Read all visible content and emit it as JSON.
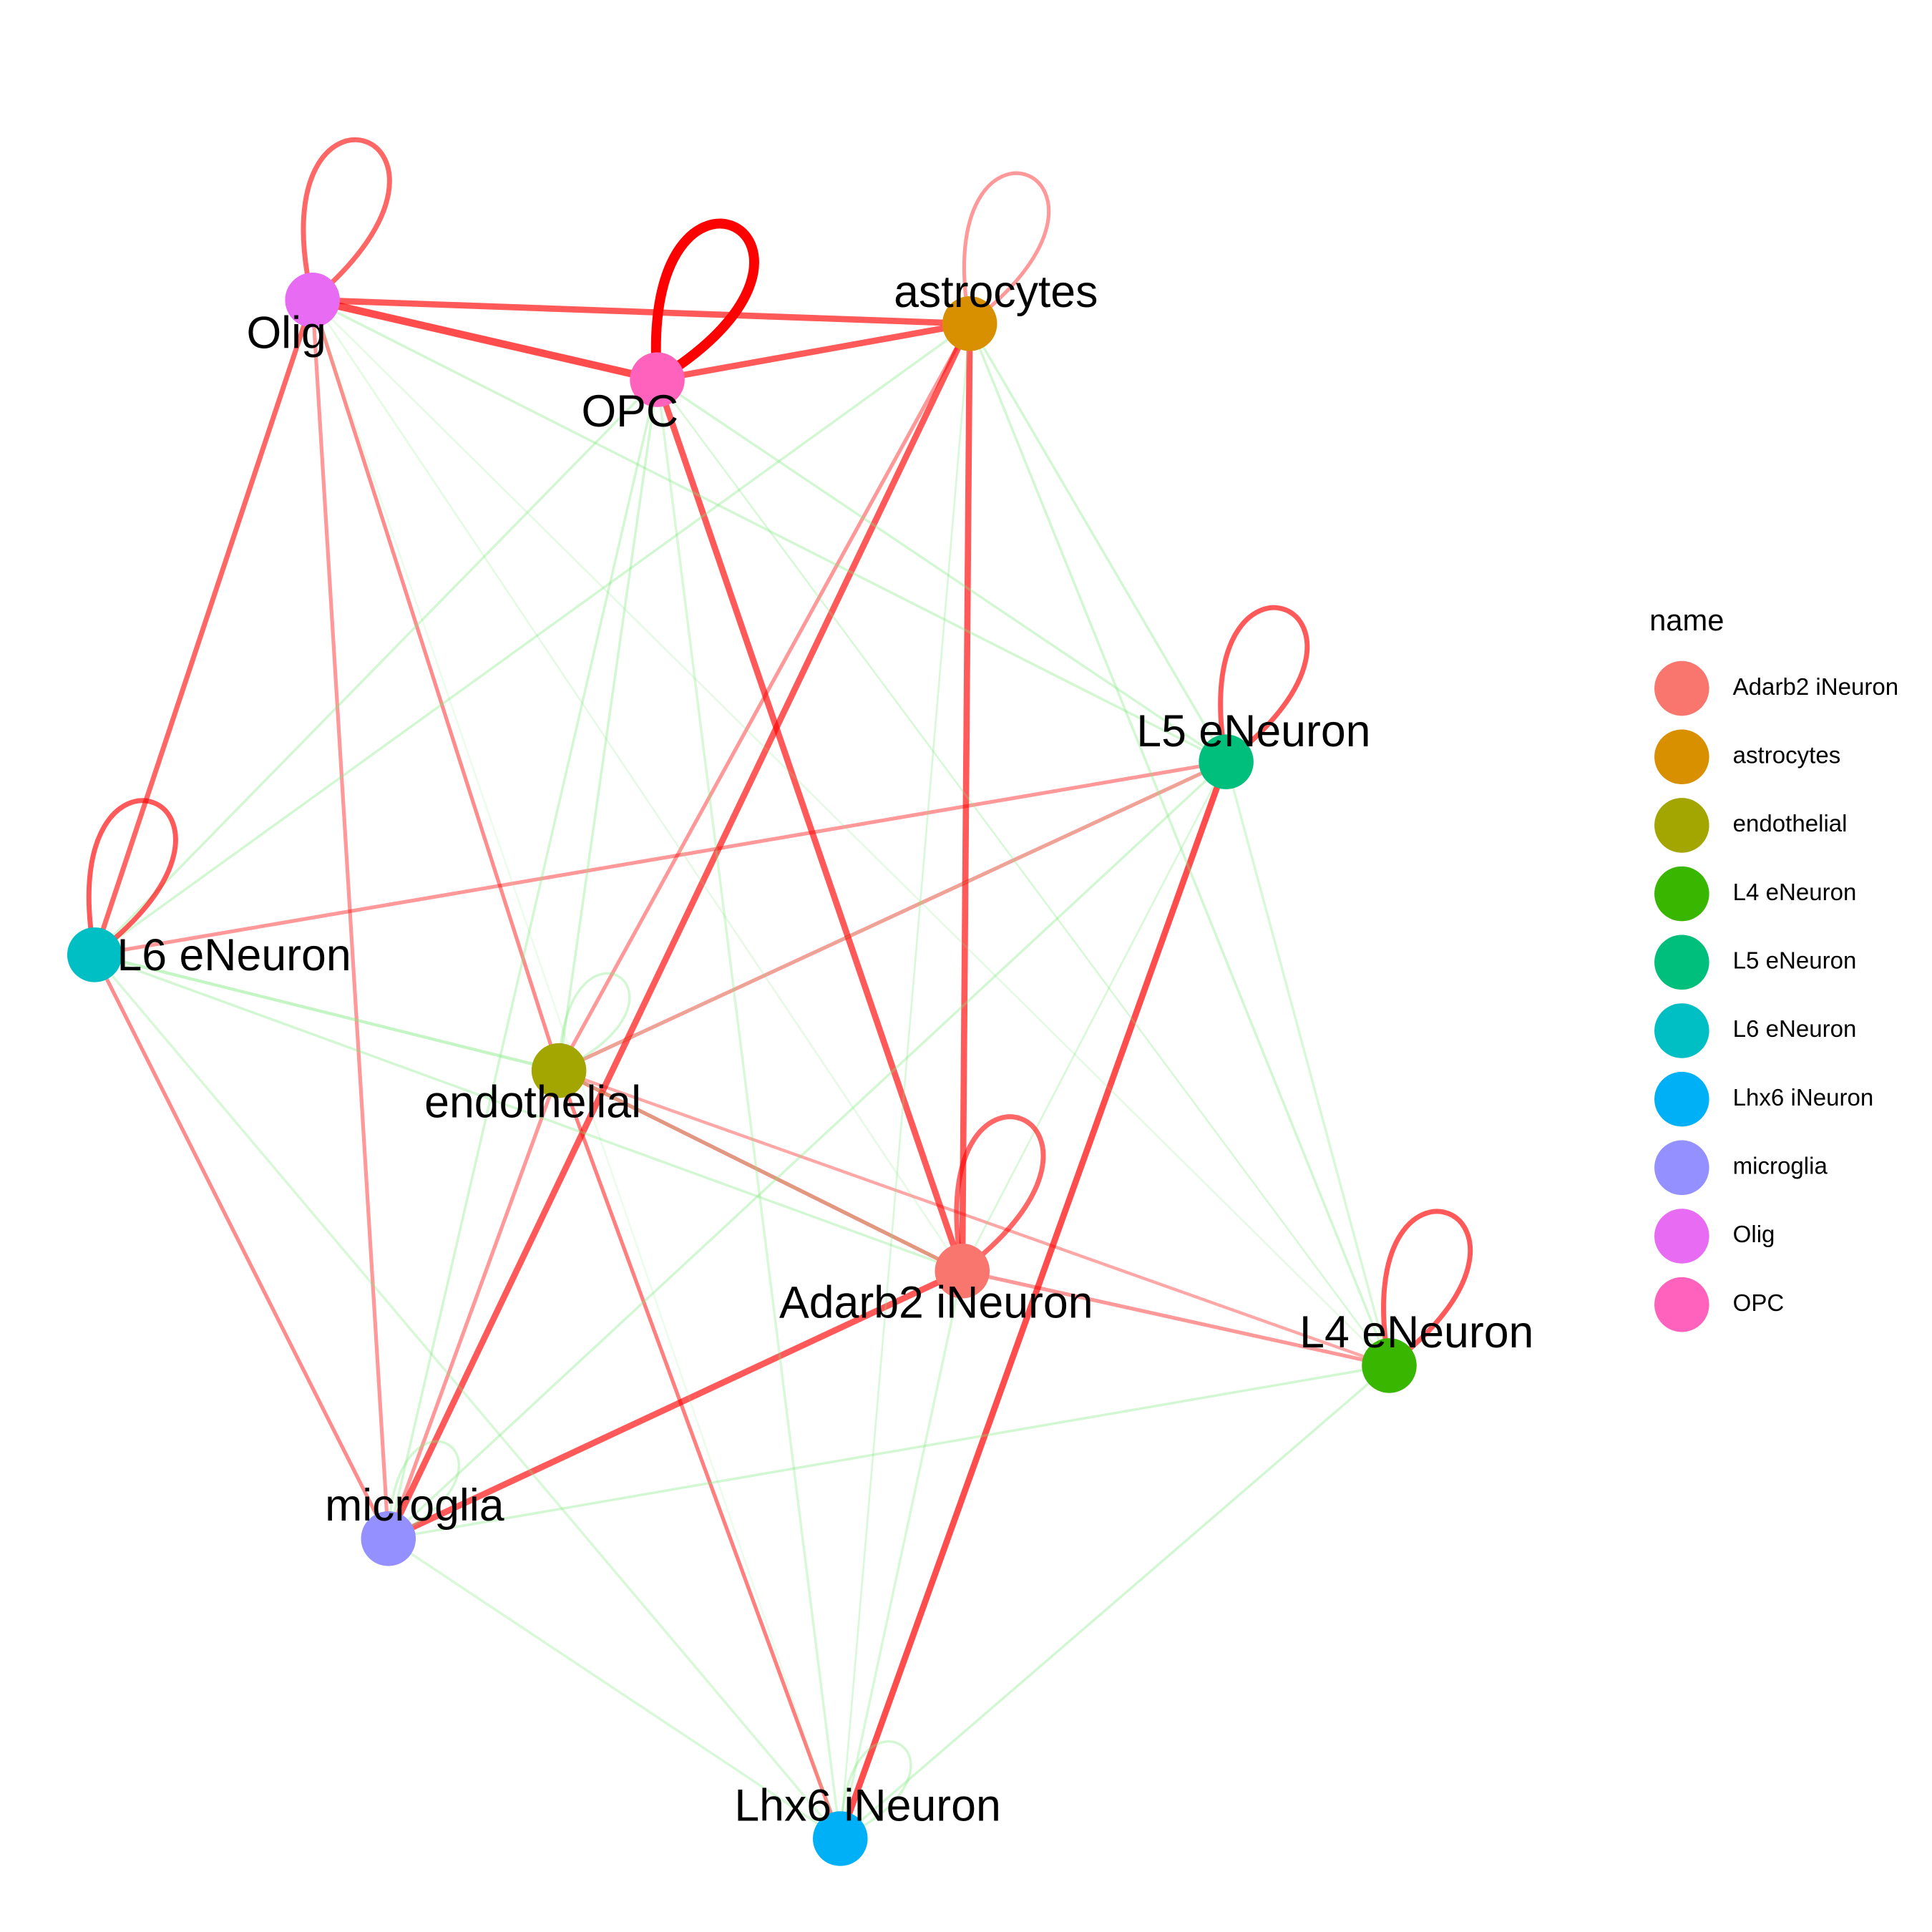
{
  "nodes": [
    {
      "label": "Adarb2 iNeuron",
      "color": "#F8766D"
    },
    {
      "label": "astrocytes",
      "color": "#D89000"
    },
    {
      "label": "endothelial",
      "color": "#A3A500"
    },
    {
      "label": "L4 eNeuron",
      "color": "#39B600"
    },
    {
      "label": "L5 eNeuron",
      "color": "#00BF7D"
    },
    {
      "label": "L6 eNeuron",
      "color": "#00BFC4"
    },
    {
      "label": "Lhx6 iNeuron",
      "color": "#00B0F6"
    },
    {
      "label": "microglia",
      "color": "#9590FF"
    },
    {
      "label": "Olig",
      "color": "#E76BF3"
    },
    {
      "label": "OPC",
      "color": "#FF62BC"
    }
  ],
  "legend": {
    "title": "name",
    "items": [
      "Adarb2 iNeuron",
      "astrocytes",
      "endothelial",
      "L4 eNeuron",
      "L5 eNeuron",
      "L6 eNeuron",
      "Lhx6 iNeuron",
      "microglia",
      "Olig",
      "OPC"
    ]
  }
}
